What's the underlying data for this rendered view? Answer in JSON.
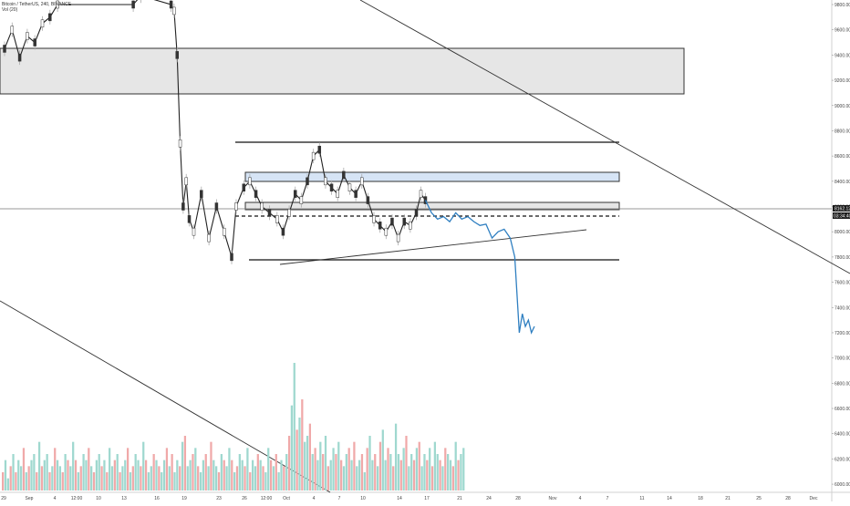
{
  "legend": {
    "symbol_line": "Bitcoin / TetherUS, 240, BINANCE",
    "indicator_line": "Vol (20)"
  },
  "chart_data": {
    "type": "candlestick",
    "y_ticks": [
      "9800.00",
      "9600.00",
      "9400.00",
      "9200.00",
      "9000.00",
      "8800.00",
      "8600.00",
      "8400.00",
      "8200.00",
      "8000.00",
      "7800.00",
      "7600.00",
      "7400.00",
      "7200.00",
      "7000.00",
      "6800.00",
      "6600.00",
      "6400.00",
      "6200.00",
      "6000.00"
    ],
    "x_ticks": [
      "29",
      "Sep",
      "4",
      "12:00",
      "10",
      "13",
      "16",
      "19",
      "23",
      "26",
      "12:00",
      "Oct",
      "4",
      "7",
      "10",
      "14",
      "17",
      "21",
      "24",
      "28",
      "Nov",
      "4",
      "7",
      "11",
      "14",
      "18",
      "21",
      "25",
      "28",
      "Dec"
    ],
    "current_price_label": "8162.12",
    "countdown_label": "03:34:40",
    "ylim": [
      5950,
      9800
    ],
    "price_path": [
      [
        0,
        9450
      ],
      [
        0.5,
        9600
      ],
      [
        1,
        9380
      ],
      [
        1.5,
        9550
      ],
      [
        2,
        9500
      ],
      [
        2.5,
        9650
      ],
      [
        3,
        9700
      ],
      [
        3.5,
        9800
      ],
      [
        8.5,
        9800
      ],
      [
        9,
        9870
      ],
      [
        11,
        9800
      ],
      [
        11.2,
        9750
      ],
      [
        11.4,
        9400
      ],
      [
        11.6,
        8700
      ],
      [
        11.8,
        8200
      ],
      [
        12,
        8400
      ],
      [
        12.2,
        8100
      ],
      [
        12.5,
        8000
      ],
      [
        13,
        8300
      ],
      [
        13.5,
        7950
      ],
      [
        14,
        8200
      ],
      [
        14.5,
        8000
      ],
      [
        15,
        7800
      ],
      [
        15.3,
        8200
      ],
      [
        15.8,
        8350
      ],
      [
        16.2,
        8400
      ],
      [
        16.6,
        8300
      ],
      [
        17,
        8200
      ],
      [
        17.5,
        8150
      ],
      [
        18,
        8100
      ],
      [
        18.4,
        8000
      ],
      [
        18.8,
        8150
      ],
      [
        19.2,
        8300
      ],
      [
        19.6,
        8250
      ],
      [
        20,
        8400
      ],
      [
        20.4,
        8600
      ],
      [
        20.8,
        8650
      ],
      [
        21.2,
        8400
      ],
      [
        21.6,
        8350
      ],
      [
        22,
        8300
      ],
      [
        22.4,
        8450
      ],
      [
        22.8,
        8350
      ],
      [
        23.2,
        8300
      ],
      [
        23.6,
        8400
      ],
      [
        24,
        8250
      ],
      [
        24.4,
        8100
      ],
      [
        24.8,
        8050
      ],
      [
        25.2,
        8000
      ],
      [
        25.6,
        8080
      ],
      [
        26,
        7950
      ],
      [
        26.4,
        8080
      ],
      [
        26.8,
        8050
      ],
      [
        27.2,
        8150
      ],
      [
        27.5,
        8300
      ],
      [
        27.8,
        8250
      ]
    ],
    "projection_path": [
      [
        27.8,
        8250
      ],
      [
        28.2,
        8150
      ],
      [
        28.6,
        8100
      ],
      [
        29,
        8120
      ],
      [
        29.4,
        8080
      ],
      [
        29.8,
        8150
      ],
      [
        30.2,
        8100
      ],
      [
        30.6,
        8120
      ],
      [
        31,
        8080
      ],
      [
        31.4,
        8050
      ],
      [
        31.8,
        8060
      ],
      [
        32.2,
        7950
      ],
      [
        32.6,
        8000
      ],
      [
        33,
        8020
      ],
      [
        33.4,
        7950
      ],
      [
        33.7,
        7800
      ],
      [
        33.9,
        7400
      ],
      [
        34,
        7200
      ],
      [
        34.2,
        7350
      ],
      [
        34.4,
        7250
      ],
      [
        34.6,
        7300
      ],
      [
        34.8,
        7200
      ],
      [
        35,
        7250
      ]
    ],
    "volume": [
      3,
      5,
      2,
      4,
      6,
      3,
      5,
      4,
      7,
      3,
      4,
      5,
      6,
      3,
      8,
      4,
      5,
      6,
      3,
      4,
      7,
      5,
      4,
      3,
      6,
      5,
      4,
      8,
      5,
      3,
      4,
      6,
      5,
      7,
      4,
      3,
      5,
      6,
      4,
      5,
      3,
      7,
      4,
      5,
      6,
      3,
      4,
      5,
      7,
      3,
      4,
      6,
      5,
      4,
      8,
      5,
      3,
      4,
      6,
      5,
      4,
      3,
      5,
      7,
      4,
      6,
      3,
      5,
      4,
      8,
      9,
      4,
      5,
      6,
      7,
      4,
      3,
      5,
      6,
      4,
      8,
      5,
      4,
      3,
      6,
      5,
      4,
      7,
      5,
      3,
      4,
      6,
      5,
      4,
      7,
      3,
      5,
      4,
      6,
      5,
      4,
      3,
      7,
      5,
      4,
      6,
      3,
      5,
      4,
      6,
      9,
      14,
      21,
      10,
      12,
      15,
      8,
      9,
      11,
      6,
      7,
      5,
      8,
      6,
      9,
      4,
      5,
      7,
      6,
      8,
      5,
      4,
      6,
      7,
      5,
      8,
      4,
      5,
      6,
      3,
      7,
      9,
      5,
      6,
      4,
      8,
      10,
      5,
      7,
      6,
      4,
      11,
      6,
      5,
      7,
      9,
      4,
      6,
      5,
      7,
      8,
      4,
      6,
      5,
      7,
      4,
      8,
      6,
      5,
      4,
      7,
      6,
      5,
      4,
      8,
      5,
      6,
      7
    ]
  }
}
